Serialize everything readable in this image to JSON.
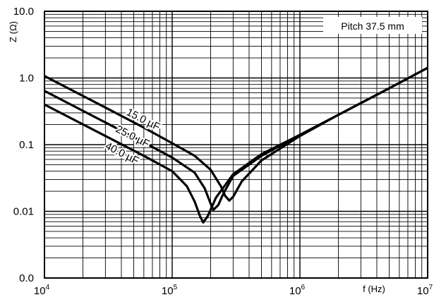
{
  "chart_data": {
    "type": "line",
    "title": "",
    "xlabel": "f (Hz)",
    "ylabel": "Z (Ω)",
    "x_scale": "log",
    "y_scale": "log",
    "xlim": [
      10000,
      10000000
    ],
    "ylim": [
      0.001,
      10
    ],
    "x_ticks": [
      {
        "base": "10",
        "exp": "4",
        "value": 10000
      },
      {
        "base": "10",
        "exp": "5",
        "value": 100000
      },
      {
        "base": "10",
        "exp": "6",
        "value": 1000000
      },
      {
        "base": "10",
        "exp": "7",
        "value": 10000000
      }
    ],
    "y_ticks": [
      {
        "label": "10.0",
        "value": 10
      },
      {
        "label": "1.0",
        "value": 1
      },
      {
        "label": "0.1",
        "value": 0.1
      },
      {
        "label": "0.01",
        "value": 0.01
      },
      {
        "label": "0.0",
        "value": 0.001
      }
    ],
    "grid": true,
    "annotation": "Pitch 37.5 mm",
    "series": [
      {
        "name": "15.0 µF",
        "x": [
          10000,
          30000,
          60000,
          100000,
          150000,
          200000,
          240000,
          260000,
          280000,
          300000,
          350000,
          500000,
          1000000,
          2000000,
          5000000,
          10000000
        ],
        "y": [
          1.07,
          0.36,
          0.18,
          0.105,
          0.068,
          0.042,
          0.024,
          0.017,
          0.0145,
          0.0165,
          0.028,
          0.058,
          0.135,
          0.28,
          0.7,
          1.42
        ]
      },
      {
        "name": "25.0 µF",
        "x": [
          10000,
          30000,
          60000,
          100000,
          150000,
          180000,
          200000,
          210000,
          230000,
          250000,
          300000,
          500000,
          1000000,
          2000000,
          5000000,
          10000000
        ],
        "y": [
          0.64,
          0.215,
          0.108,
          0.064,
          0.038,
          0.022,
          0.013,
          0.0105,
          0.0125,
          0.018,
          0.034,
          0.068,
          0.14,
          0.28,
          0.7,
          1.42
        ]
      },
      {
        "name": "40.0 µF",
        "x": [
          10000,
          30000,
          60000,
          100000,
          130000,
          150000,
          165000,
          175000,
          190000,
          220000,
          300000,
          500000,
          1000000,
          2000000,
          5000000,
          10000000
        ],
        "y": [
          0.4,
          0.135,
          0.068,
          0.04,
          0.024,
          0.014,
          0.0085,
          0.0068,
          0.0085,
          0.016,
          0.036,
          0.072,
          0.14,
          0.28,
          0.7,
          1.42
        ]
      }
    ]
  }
}
